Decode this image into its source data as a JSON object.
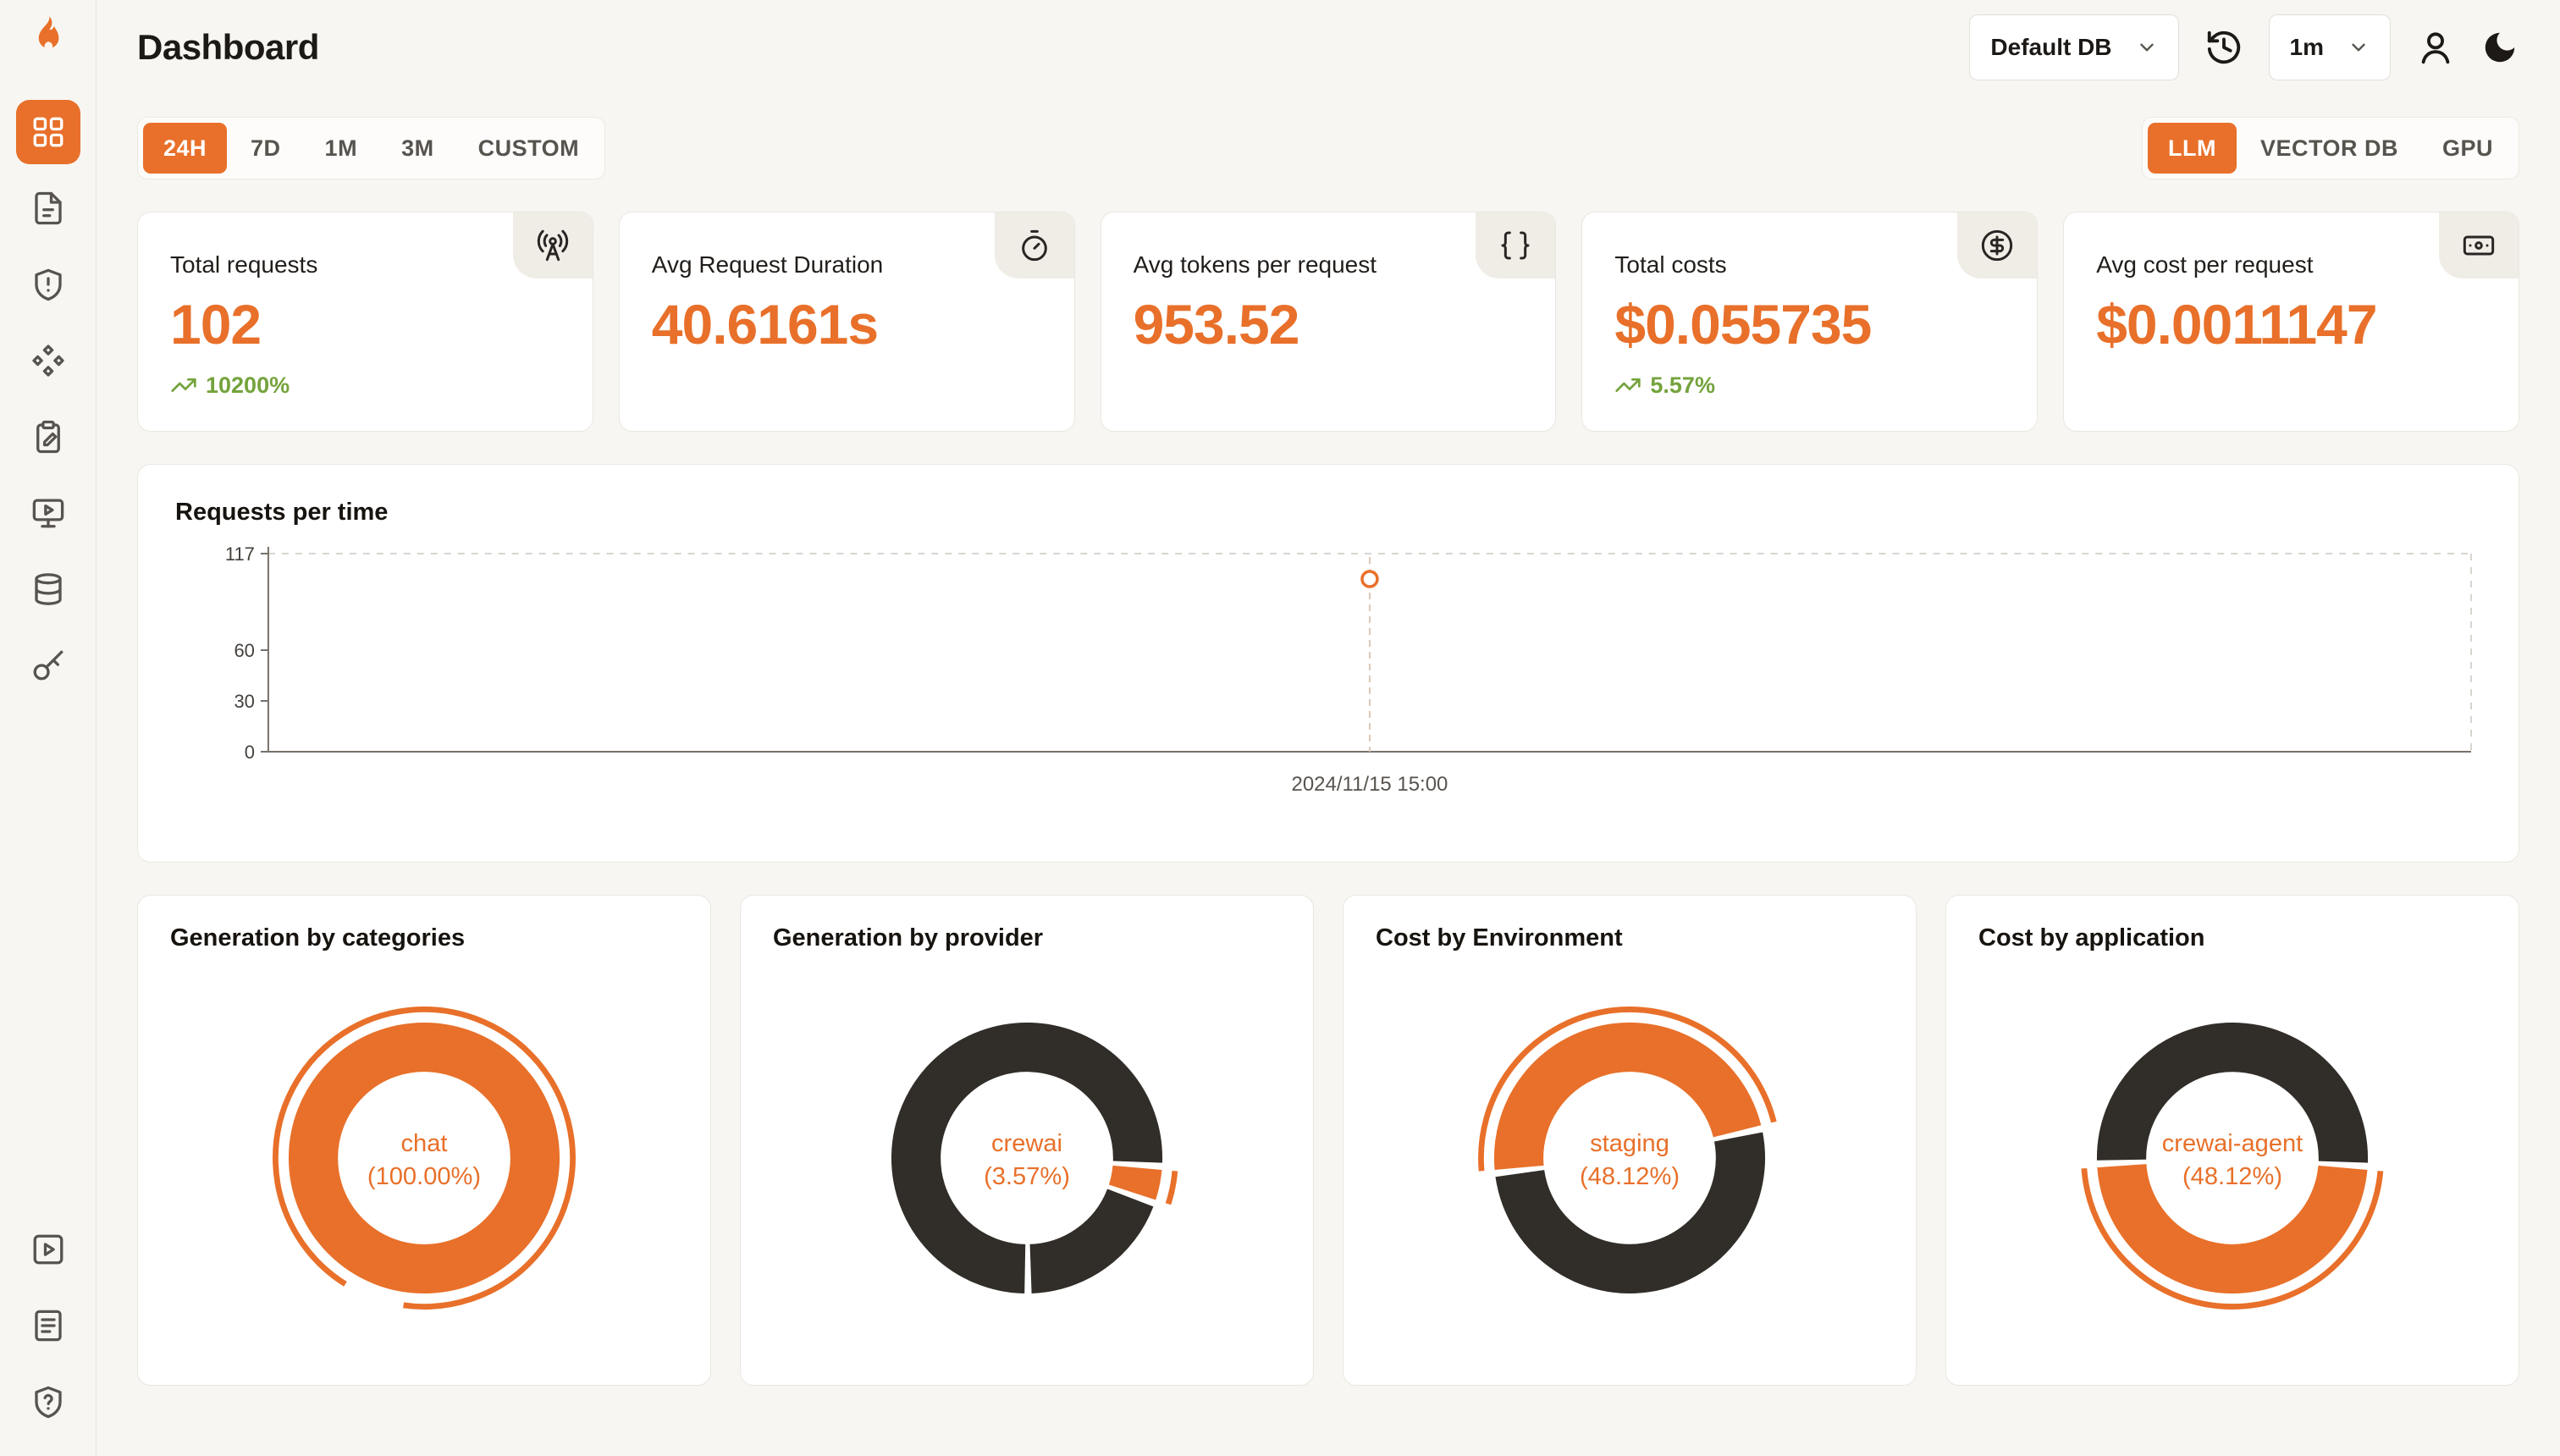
{
  "colors": {
    "accent": "#e8702a",
    "dark_slice": "#312d28",
    "positive": "#74a33c"
  },
  "page": {
    "title": "Dashboard"
  },
  "header": {
    "db_select": {
      "value": "Default DB"
    },
    "interval_select": {
      "value": "1m"
    }
  },
  "sidebar": {
    "items": [
      {
        "icon": "dashboard-grid",
        "active": true
      },
      {
        "icon": "file"
      },
      {
        "icon": "shield-alert"
      },
      {
        "icon": "trace-nodes"
      },
      {
        "icon": "clipboard-pen"
      },
      {
        "icon": "monitor-play"
      },
      {
        "icon": "database"
      },
      {
        "icon": "key"
      }
    ],
    "bottom_items": [
      {
        "icon": "play-square"
      },
      {
        "icon": "document-lines"
      },
      {
        "icon": "shield-question"
      }
    ]
  },
  "time_tabs": {
    "items": [
      "24H",
      "7D",
      "1M",
      "3M",
      "CUSTOM"
    ],
    "active": "24H"
  },
  "scope_tabs": {
    "items": [
      "LLM",
      "VECTOR DB",
      "GPU"
    ],
    "active": "LLM"
  },
  "stats": [
    {
      "label": "Total requests",
      "value": "102",
      "delta": "10200%",
      "icon": "radio-tower"
    },
    {
      "label": "Avg Request Duration",
      "value": "40.6161s",
      "icon": "timer"
    },
    {
      "label": "Avg tokens per request",
      "value": "953.52",
      "icon": "braces"
    },
    {
      "label": "Total costs",
      "value": "$0.055735",
      "delta": "5.57%",
      "icon": "circle-dollar"
    },
    {
      "label": "Avg cost per request",
      "value": "$0.0011147",
      "icon": "banknote"
    }
  ],
  "chart_data": [
    {
      "type": "line",
      "title": "Requests per time",
      "x": [
        "2024/11/15 15:00"
      ],
      "series": [
        {
          "name": "requests",
          "values": [
            102
          ]
        }
      ],
      "yticks": [
        0,
        30,
        60,
        117
      ],
      "ylim": [
        0,
        117
      ],
      "grid": "dashed-border",
      "point_style": "hollow-circle",
      "point_color": "#e8702a"
    },
    {
      "type": "pie",
      "title": "Generation by categories",
      "center_label": "chat",
      "center_pct": "(100.00%)",
      "slices": [
        {
          "name": "chat",
          "pct": 100.0
        }
      ],
      "arcs": [
        {
          "start": 0,
          "span": 360,
          "color": "#e8702a"
        }
      ],
      "emphasis": {
        "start": 212,
        "span": 336
      }
    },
    {
      "type": "pie",
      "title": "Generation by provider",
      "center_label": "crewai",
      "center_pct": "(3.57%)",
      "slices": [
        {
          "name": "crewai",
          "pct": 3.57
        },
        {
          "name": "others",
          "pct": 96.43
        }
      ],
      "arcs": [
        {
          "start": 95,
          "span": 13,
          "color": "#e8702a"
        },
        {
          "start": 111,
          "span": 67,
          "color": "#312d28"
        },
        {
          "start": 181,
          "span": 271,
          "color": "#312d28"
        }
      ],
      "emphasis": {
        "start": 95,
        "span": 13
      }
    },
    {
      "type": "pie",
      "title": "Cost by Environment",
      "center_label": "staging",
      "center_pct": "(48.12%)",
      "slices": [
        {
          "name": "staging",
          "pct": 48.12
        },
        {
          "name": "others",
          "pct": 51.88
        }
      ],
      "arcs": [
        {
          "start": 265,
          "span": 171,
          "color": "#e8702a"
        },
        {
          "start": 79,
          "span": 183,
          "color": "#312d28"
        }
      ],
      "emphasis": {
        "start": 265,
        "span": 171
      }
    },
    {
      "type": "pie",
      "title": "Cost by application",
      "center_label": "crewai-agent",
      "center_pct": "(48.12%)",
      "slices": [
        {
          "name": "crewai-agent",
          "pct": 48.12
        },
        {
          "name": "others",
          "pct": 51.88
        }
      ],
      "arcs": [
        {
          "start": 95,
          "span": 171,
          "color": "#e8702a"
        },
        {
          "start": 269,
          "span": 183,
          "color": "#312d28"
        }
      ],
      "emphasis": {
        "start": 95,
        "span": 171
      }
    }
  ]
}
